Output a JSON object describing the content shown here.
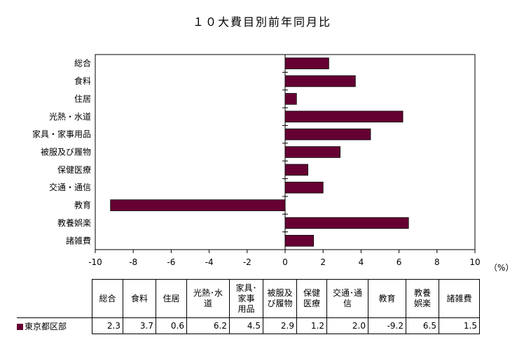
{
  "title": "１０大費目別前年同月比",
  "unit_label": "（%）",
  "chart_data": {
    "type": "bar",
    "orientation": "horizontal",
    "title": "１０大費目別前年同月比",
    "categories": [
      "総合",
      "食料",
      "住居",
      "光熱・水道",
      "家具・家事用品",
      "被服及び履物",
      "保健医療",
      "交通・通信",
      "教育",
      "教養娯楽",
      "諸雑費"
    ],
    "series": [
      {
        "name": "東京都区部",
        "color": "#660033",
        "values": [
          2.3,
          3.7,
          0.6,
          6.2,
          4.5,
          2.9,
          1.2,
          2.0,
          -9.2,
          6.5,
          1.5
        ]
      }
    ],
    "xlim": [
      -10,
      10
    ],
    "xticks": [
      -10,
      -8,
      -6,
      -4,
      -2,
      0,
      2,
      4,
      6,
      8,
      10
    ],
    "xlabel": "（%）",
    "grid": false,
    "legend": "table-bottom"
  },
  "table": {
    "headers": [
      [
        "総合"
      ],
      [
        "食料"
      ],
      [
        "住居"
      ],
      [
        "光熱･水",
        "道"
      ],
      [
        "家具･",
        "家事",
        "用品"
      ],
      [
        "被服及",
        "び履物"
      ],
      [
        "保健",
        "医療"
      ],
      [
        "交通･通",
        "信"
      ],
      [
        "教育"
      ],
      [
        "教養",
        "娯楽"
      ],
      [
        "諸雑費"
      ]
    ],
    "row_label": "東京都区部",
    "values": [
      "2.3",
      "3.7",
      "0.6",
      "6.2",
      "4.5",
      "2.9",
      "1.2",
      "2.0",
      "-9.2",
      "6.5",
      "1.5"
    ]
  }
}
